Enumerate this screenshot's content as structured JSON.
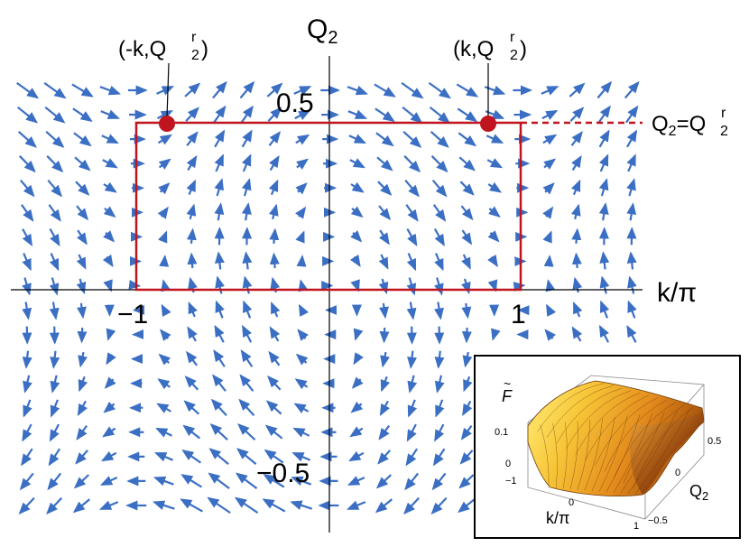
{
  "axes": {
    "y_label": "Q",
    "y_label_sub": "2",
    "x_label": "k/π",
    "x_tick_neg": "−1",
    "x_tick_pos": "1",
    "y_tick_pos": "0.5",
    "y_tick_neg": "−0.5"
  },
  "points": {
    "left": {
      "prefix": "(-k,",
      "q": "Q",
      "sub": "2",
      "sup": "r",
      "suffix": ")"
    },
    "right": {
      "prefix": "(k,",
      "q": "Q",
      "sub": "2",
      "sup": "r",
      "suffix": ")"
    }
  },
  "level_line": {
    "lhs": "Q",
    "lhs_sub": "2",
    "eq": "=",
    "rhs": "Q",
    "rhs_sub": "2",
    "rhs_sup": "r"
  },
  "inset": {
    "z_label": "F",
    "z_tick_top": "0.1",
    "z_tick_bottom": "0",
    "k_tick_left": "−1",
    "k_tick_mid": "0",
    "k_tick_right": "1",
    "k_label": "k/π",
    "q_tick_top": "0.5",
    "q_tick_mid": "0",
    "q_tick_bottom": "−0.5",
    "q_label": "Q",
    "q_label_sub": "2"
  },
  "colors": {
    "arrows": "#3b6fc4",
    "rectangle": "#c0141f",
    "points": "#c0141f",
    "surface_light": "#ffe84a",
    "surface_mid": "#f0a020",
    "surface_dark": "#7a3306"
  }
}
